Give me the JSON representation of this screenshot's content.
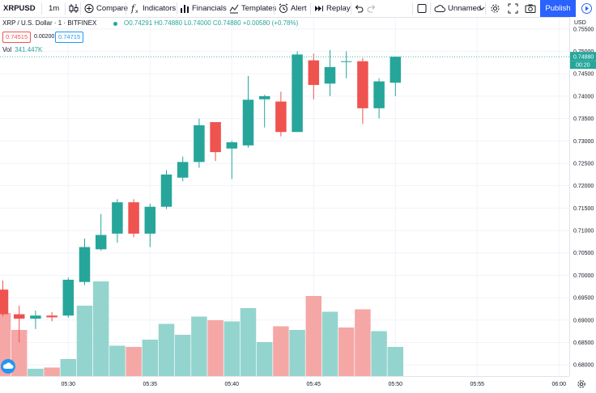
{
  "toolbar": {
    "symbol": "XRPUSD",
    "interval": "1m",
    "compare": "Compare",
    "indicators": "Indicators",
    "financials": "Financials",
    "templates": "Templates",
    "alert": "Alert",
    "replay": "Replay",
    "layout_name": "Unnamed",
    "publish": "Publish"
  },
  "legend": {
    "title": "XRP / U.S. Dollar · 1 · BITFINEX",
    "ohlc": "O0.74291 H0.74880 L0.74000 C0.74880 +0.00580 (+0.78%)",
    "bid": "0.74515",
    "spread": "0.00200",
    "ask": "0.74715",
    "volume_label": "Vol",
    "volume_value": "341.447K"
  },
  "price_axis": {
    "unit": "USD",
    "last_price": "0.74880",
    "countdown": "00:20"
  },
  "colors": {
    "up": "#26a69a",
    "down": "#ef5350",
    "vol_up": "#94d4ce",
    "vol_down": "#f5a7a6",
    "accent": "#2962ff"
  },
  "chart_data": {
    "type": "candlestick",
    "title": "XRP / U.S. Dollar · 1 · BITFINEX",
    "ylabel": "USD",
    "ylim": [
      0.6775,
      0.7575
    ],
    "yticks": [
      "0.68000",
      "0.68500",
      "0.69000",
      "0.69500",
      "0.70000",
      "0.70500",
      "0.71000",
      "0.71500",
      "0.72000",
      "0.72500",
      "0.73000",
      "0.73500",
      "0.74000",
      "0.74500",
      "0.75000",
      "0.75500"
    ],
    "xticks": [
      "05:30",
      "05:35",
      "05:40",
      "05:45",
      "05:50",
      "05:55",
      "06:00"
    ],
    "candles": [
      {
        "time": "05:26",
        "open": 0.6968,
        "high": 0.6988,
        "low": 0.6908,
        "close": 0.6913,
        "volume": "down"
      },
      {
        "time": "05:27",
        "open": 0.6913,
        "high": 0.6932,
        "low": 0.685,
        "close": 0.6903,
        "volume": "down"
      },
      {
        "time": "05:28",
        "open": 0.6903,
        "high": 0.6921,
        "low": 0.688,
        "close": 0.691,
        "volume": "up"
      },
      {
        "time": "05:29",
        "open": 0.691,
        "high": 0.6918,
        "low": 0.6897,
        "close": 0.6906,
        "volume": "down"
      },
      {
        "time": "05:30",
        "open": 0.691,
        "high": 0.6995,
        "low": 0.6905,
        "close": 0.699,
        "volume": "up"
      },
      {
        "time": "05:31",
        "open": 0.6985,
        "high": 0.7082,
        "low": 0.6978,
        "close": 0.7063,
        "volume": "up"
      },
      {
        "time": "05:32",
        "open": 0.7058,
        "high": 0.7137,
        "low": 0.7055,
        "close": 0.709,
        "volume": "up"
      },
      {
        "time": "05:33",
        "open": 0.7093,
        "high": 0.717,
        "low": 0.7073,
        "close": 0.7163,
        "volume": "up"
      },
      {
        "time": "05:34",
        "open": 0.7163,
        "high": 0.717,
        "low": 0.7085,
        "close": 0.7093,
        "volume": "down"
      },
      {
        "time": "05:35",
        "open": 0.7093,
        "high": 0.716,
        "low": 0.7063,
        "close": 0.7153,
        "volume": "up"
      },
      {
        "time": "05:36",
        "open": 0.7153,
        "high": 0.7235,
        "low": 0.7148,
        "close": 0.7225,
        "volume": "up"
      },
      {
        "time": "05:37",
        "open": 0.7218,
        "high": 0.7265,
        "low": 0.721,
        "close": 0.7253,
        "volume": "up"
      },
      {
        "time": "05:38",
        "open": 0.7253,
        "high": 0.735,
        "low": 0.724,
        "close": 0.7335,
        "volume": "up"
      },
      {
        "time": "05:39",
        "open": 0.7342,
        "high": 0.7342,
        "low": 0.7255,
        "close": 0.7275,
        "volume": "down"
      },
      {
        "time": "05:40",
        "open": 0.7283,
        "high": 0.73,
        "low": 0.7215,
        "close": 0.7297,
        "volume": "up"
      },
      {
        "time": "05:41",
        "open": 0.729,
        "high": 0.7445,
        "low": 0.7285,
        "close": 0.7392,
        "volume": "up"
      },
      {
        "time": "05:42",
        "open": 0.7393,
        "high": 0.7403,
        "low": 0.733,
        "close": 0.74,
        "volume": "up"
      },
      {
        "time": "05:43",
        "open": 0.7388,
        "high": 0.741,
        "low": 0.731,
        "close": 0.732,
        "volume": "down"
      },
      {
        "time": "05:44",
        "open": 0.732,
        "high": 0.75,
        "low": 0.732,
        "close": 0.7493,
        "volume": "up"
      },
      {
        "time": "05:45",
        "open": 0.748,
        "high": 0.7495,
        "low": 0.7393,
        "close": 0.7425,
        "volume": "down"
      },
      {
        "time": "05:46",
        "open": 0.7428,
        "high": 0.7503,
        "low": 0.74,
        "close": 0.7465,
        "volume": "up"
      },
      {
        "time": "05:47",
        "open": 0.7478,
        "high": 0.75,
        "low": 0.744,
        "close": 0.7478,
        "volume": "down"
      },
      {
        "time": "05:48",
        "open": 0.7478,
        "high": 0.7485,
        "low": 0.7338,
        "close": 0.7373,
        "volume": "down"
      },
      {
        "time": "05:49",
        "open": 0.7373,
        "high": 0.744,
        "low": 0.735,
        "close": 0.7433,
        "volume": "up"
      },
      {
        "time": "05:50",
        "open": 0.743,
        "high": 0.7488,
        "low": 0.74,
        "close": 0.7488,
        "volume": "up"
      }
    ],
    "volume_relative": [
      0.52,
      0.38,
      0.06,
      0.07,
      0.14,
      0.58,
      0.78,
      0.25,
      0.24,
      0.3,
      0.43,
      0.34,
      0.49,
      0.46,
      0.45,
      0.56,
      0.28,
      0.41,
      0.38,
      0.66,
      0.53,
      0.4,
      0.55,
      0.37,
      0.24
    ]
  }
}
